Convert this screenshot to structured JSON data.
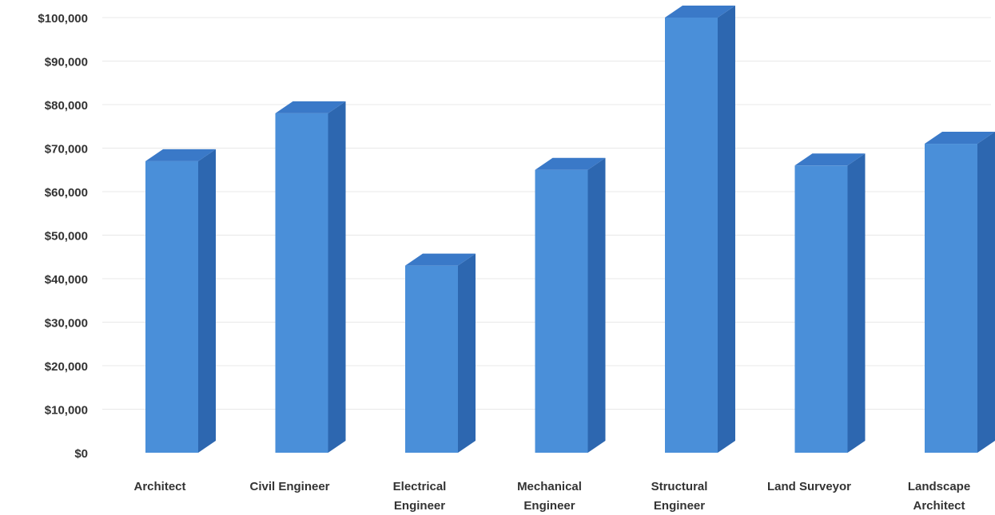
{
  "chart_data": {
    "type": "bar",
    "title": "",
    "xlabel": "",
    "ylabel": "",
    "categories": [
      "Architect",
      "Civil Engineer",
      "Electrical Engineer",
      "Mechanical Engineer",
      "Structural Engineer",
      "Land Surveyor",
      "Landscape Architect"
    ],
    "category_label_lines": [
      [
        "Architect"
      ],
      [
        "Civil Engineer"
      ],
      [
        "Electrical",
        "Engineer"
      ],
      [
        "Mechanical",
        "Engineer"
      ],
      [
        "Structural",
        "Engineer"
      ],
      [
        "Land Surveyor"
      ],
      [
        "Landscape",
        "Architect"
      ]
    ],
    "values": [
      67000,
      78000,
      43000,
      65000,
      100000,
      66000,
      71000
    ],
    "ylim": [
      0,
      100000
    ],
    "y_ticks": [
      0,
      10000,
      20000,
      30000,
      40000,
      50000,
      60000,
      70000,
      80000,
      90000,
      100000
    ],
    "y_tick_labels": [
      "$0",
      "$10,000",
      "$20,000",
      "$30,000",
      "$40,000",
      "$50,000",
      "$60,000",
      "$70,000",
      "$80,000",
      "$90,000",
      "$100,000"
    ],
    "grid": true,
    "legend": false,
    "style": "3d-column",
    "colors": {
      "bar_front": "#4a8fd9",
      "bar_side": "#2d67b0",
      "bar_top": "#3a79c8",
      "grid": "#e8e8e8",
      "text": "#333333"
    }
  }
}
